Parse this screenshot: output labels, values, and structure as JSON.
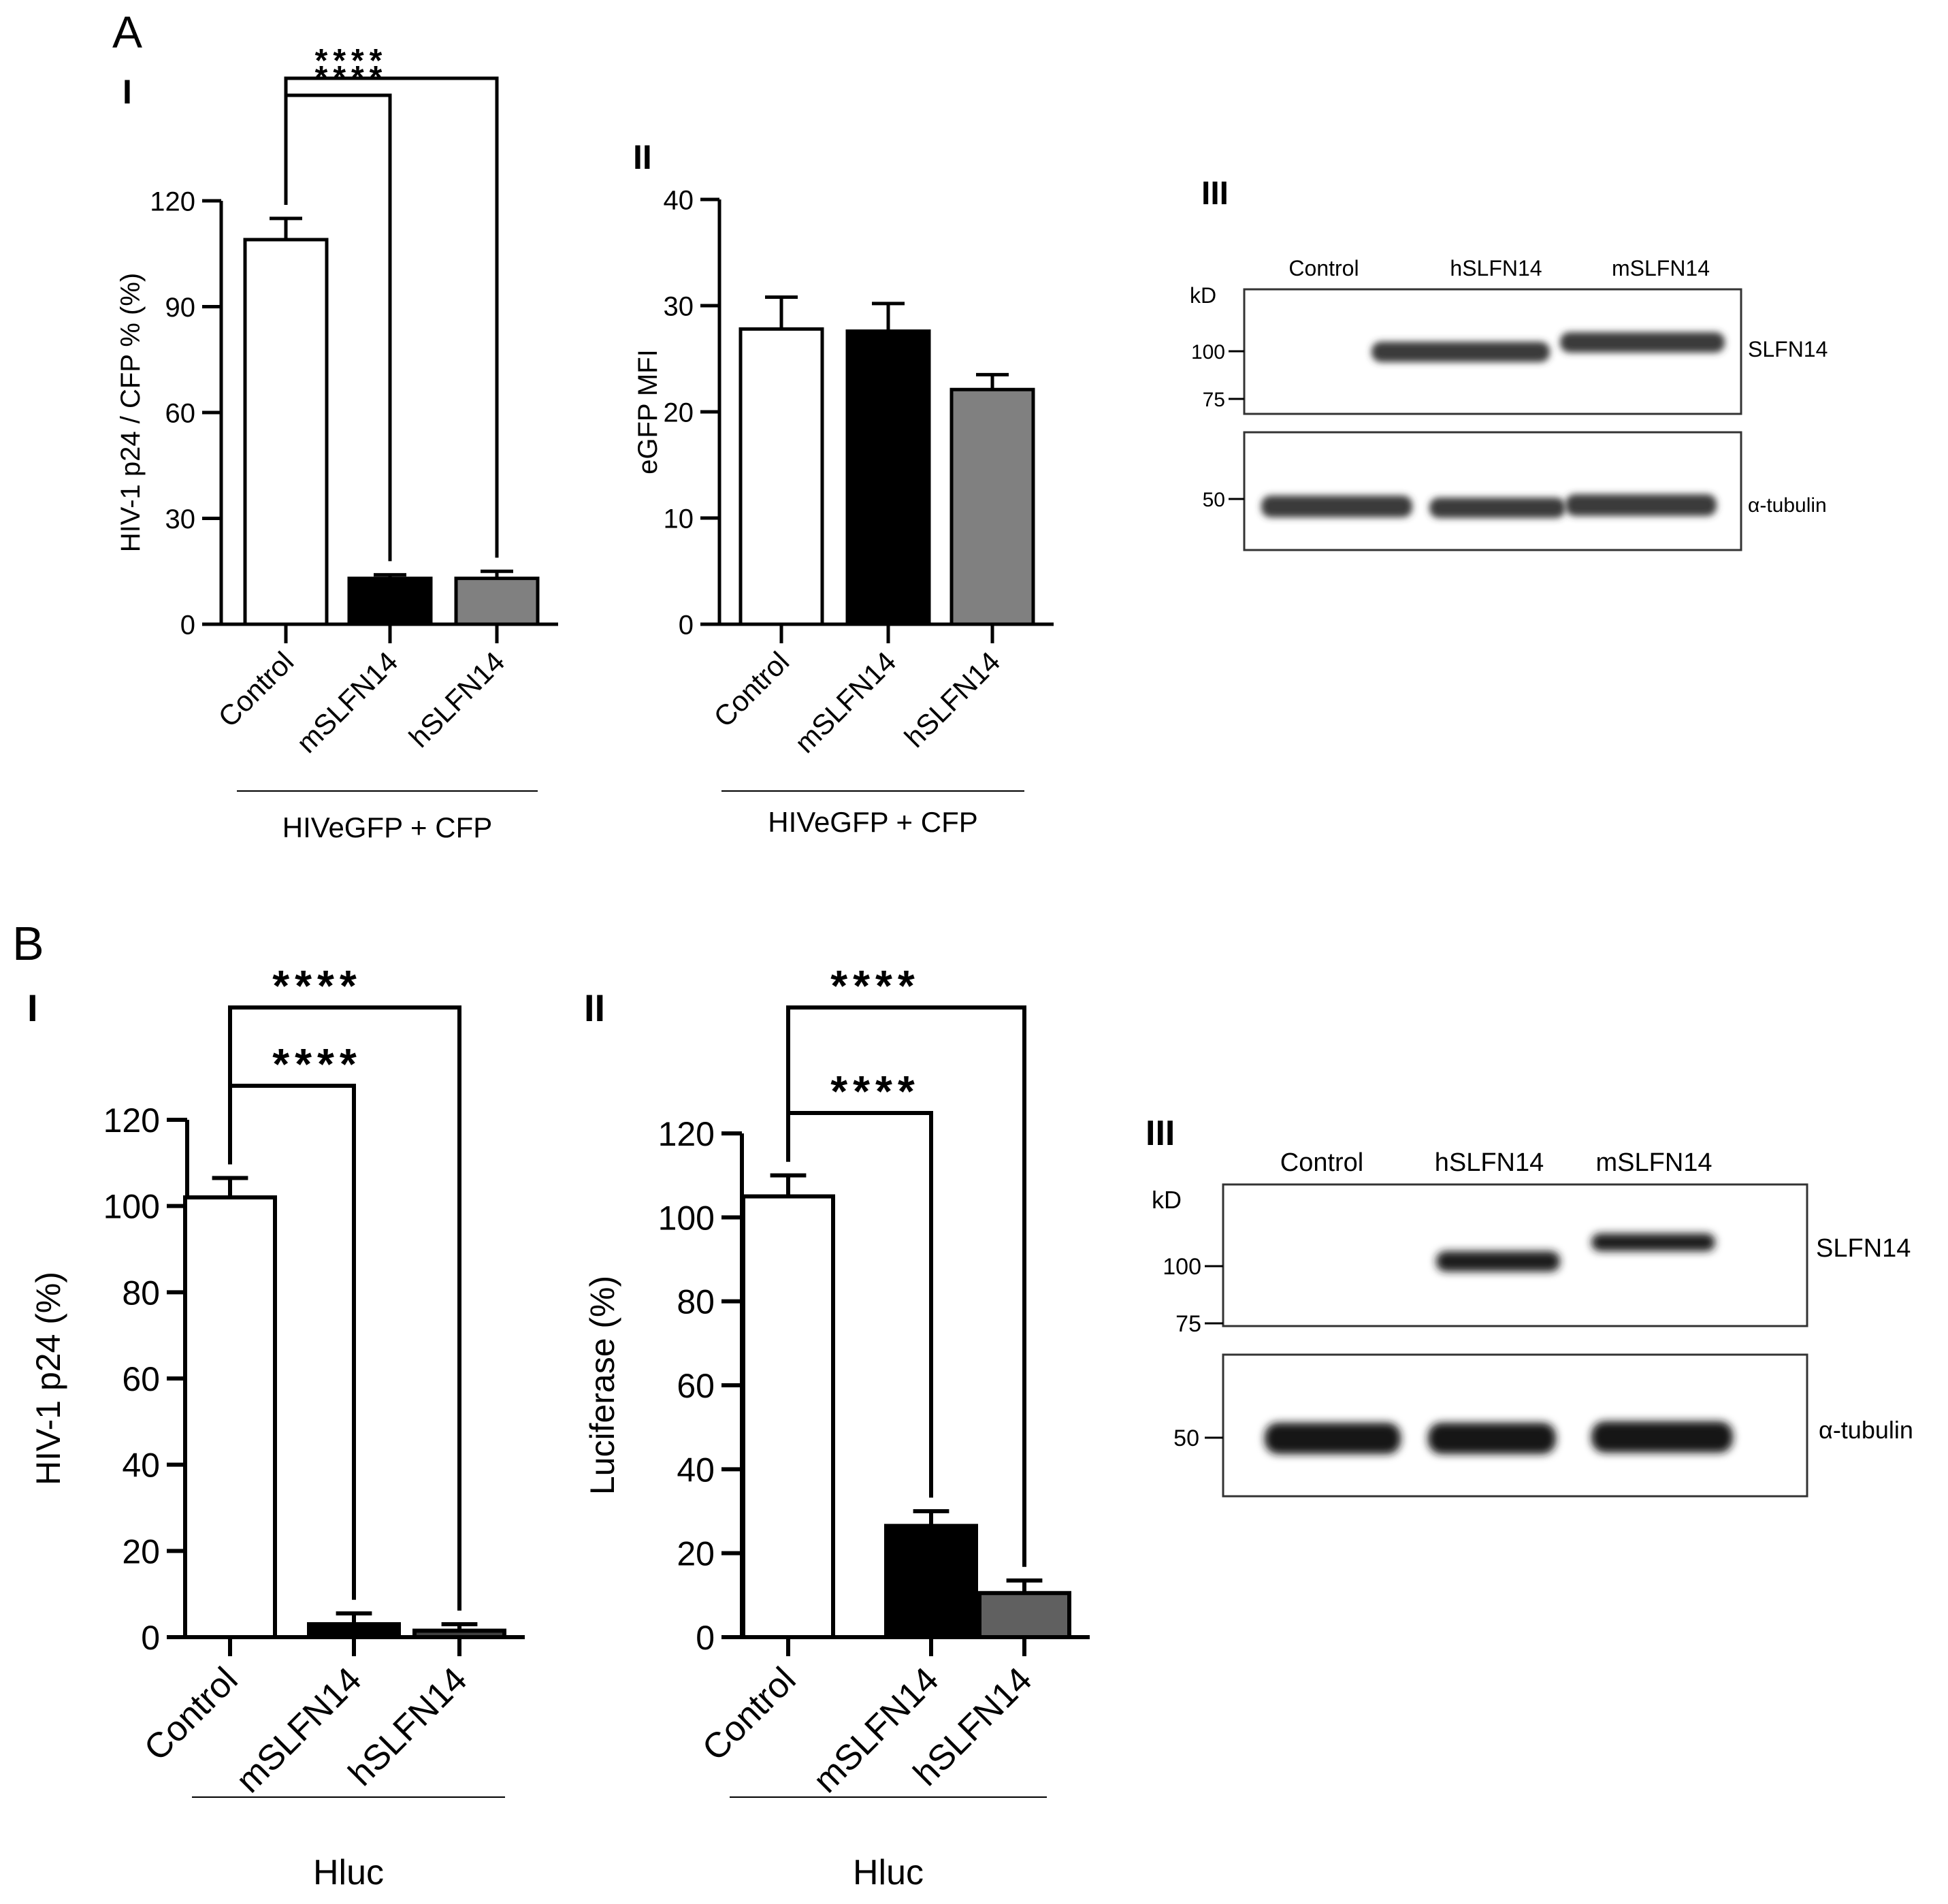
{
  "panels": {
    "A": {
      "label": "A",
      "I": {
        "label": "I",
        "chart_data": {
          "type": "bar",
          "categories": [
            "Control",
            "mSLFN14",
            "hSLFN14"
          ],
          "values": [
            109,
            13,
            13
          ],
          "errors": [
            6,
            1,
            2
          ],
          "bar_colors": [
            "#ffffff",
            "#000000",
            "#808080"
          ],
          "ylabel": "HIV-1 p24 / CFP % (%)",
          "ylim": [
            0,
            120
          ],
          "yticks": [
            0,
            30,
            60,
            90,
            120
          ],
          "group_label": "HIVeGFP + CFP",
          "significance": [
            {
              "from": "Control",
              "to": "mSLFN14",
              "label": "****"
            },
            {
              "from": "Control",
              "to": "hSLFN14",
              "label": "****"
            }
          ]
        }
      },
      "II": {
        "label": "II",
        "chart_data": {
          "type": "bar",
          "categories": [
            "Control",
            "mSLFN14",
            "hSLFN14"
          ],
          "values": [
            27.8,
            27.6,
            22.1
          ],
          "errors": [
            3.0,
            2.6,
            1.4
          ],
          "bar_colors": [
            "#ffffff",
            "#000000",
            "#808080"
          ],
          "ylabel": "eGFP MFI",
          "ylim": [
            0,
            40
          ],
          "yticks": [
            0,
            10,
            20,
            30,
            40
          ],
          "group_label": "HIVeGFP + CFP",
          "significance": []
        }
      },
      "III": {
        "label": "III",
        "blot": {
          "lanes": [
            "Control",
            "hSLFN14",
            "mSLFN14"
          ],
          "unit": "kD",
          "markers_top": [
            "100",
            "75"
          ],
          "markers_bottom": [
            "50"
          ],
          "protein_top": "SLFN14",
          "protein_bottom": "α-tubulin"
        }
      }
    },
    "B": {
      "label": "B",
      "I": {
        "label": "I",
        "chart_data": {
          "type": "bar",
          "categories": [
            "Control",
            "mSLFN14",
            "hSLFN14"
          ],
          "values": [
            102,
            3,
            1.5
          ],
          "errors": [
            4.5,
            2.5,
            1.5
          ],
          "bar_colors": [
            "#ffffff",
            "#000000",
            "#404040"
          ],
          "ylabel": "HIV-1 p24 (%)",
          "ylim": [
            0,
            120
          ],
          "yticks": [
            0,
            20,
            40,
            60,
            80,
            100,
            120
          ],
          "group_label": "Hluc",
          "significance": [
            {
              "from": "Control",
              "to": "mSLFN14",
              "label": "****"
            },
            {
              "from": "Control",
              "to": "hSLFN14",
              "label": "****"
            }
          ]
        }
      },
      "II": {
        "label": "II",
        "chart_data": {
          "type": "bar",
          "categories": [
            "Control",
            "mSLFN14",
            "hSLFN14"
          ],
          "values": [
            105,
            26.5,
            10.5
          ],
          "errors": [
            5,
            3.5,
            3
          ],
          "bar_colors": [
            "#ffffff",
            "#000000",
            "#606060"
          ],
          "ylabel": "Luciferase (%)",
          "ylim": [
            0,
            120
          ],
          "yticks": [
            0,
            20,
            40,
            60,
            80,
            100,
            120
          ],
          "group_label": "Hluc",
          "significance": [
            {
              "from": "Control",
              "to": "mSLFN14",
              "label": "****"
            },
            {
              "from": "Control",
              "to": "hSLFN14",
              "label": "****"
            }
          ]
        }
      },
      "III": {
        "label": "III",
        "blot": {
          "lanes": [
            "Control",
            "hSLFN14",
            "mSLFN14"
          ],
          "unit": "kD",
          "markers_top": [
            "100",
            "75"
          ],
          "markers_bottom": [
            "50"
          ],
          "protein_top": "SLFN14",
          "protein_bottom": "α-tubulin"
        }
      }
    }
  }
}
